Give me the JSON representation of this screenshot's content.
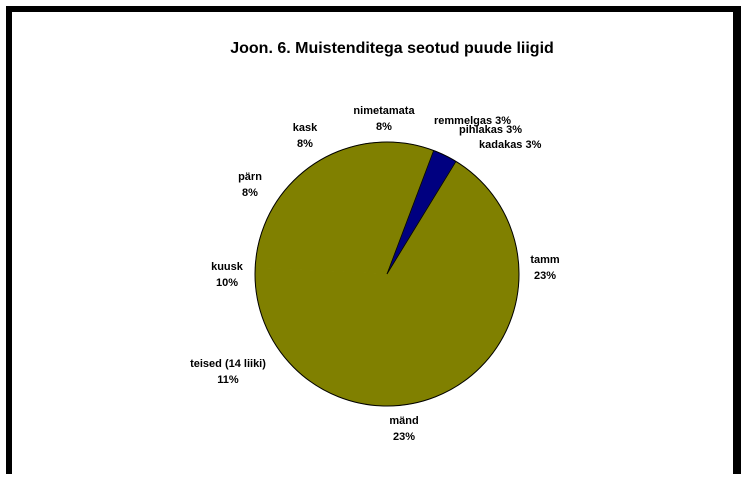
{
  "colors": {
    "main_slice": "#808000",
    "small_slice": "#000080",
    "background": "#ffffff"
  },
  "chart_data": {
    "type": "pie",
    "title": "Joon. 6. Muistenditega seotud puude liigid",
    "slices": [
      {
        "name": "remmelgas",
        "value": 3
      },
      {
        "name": "tamm",
        "value": 23
      },
      {
        "name": "mänd",
        "value": 23
      },
      {
        "name": "teised (14 liiki)",
        "value": 11
      },
      {
        "name": "kuusk",
        "value": 10
      },
      {
        "name": "pärn",
        "value": 8
      },
      {
        "name": "kask",
        "value": 8
      },
      {
        "name": "nimetamata",
        "value": 8
      },
      {
        "name": "kadakas",
        "value": 3
      },
      {
        "name": "pihlakas",
        "value": 3
      }
    ],
    "labels": [
      {
        "name": "nimetamata",
        "pct": "8%"
      },
      {
        "name": "kask",
        "pct": "8%"
      },
      {
        "name": "pärn",
        "pct": "8%"
      },
      {
        "name": "kuusk",
        "pct": "10%"
      },
      {
        "name": "teised (14 liiki)",
        "pct": "11%"
      },
      {
        "name": "mänd",
        "pct": "23%"
      },
      {
        "name": "tamm",
        "pct": "23%"
      }
    ],
    "inline_labels": [
      "remmelgas 3%",
      "pihlakas 3%",
      "kadakas 3%"
    ]
  }
}
